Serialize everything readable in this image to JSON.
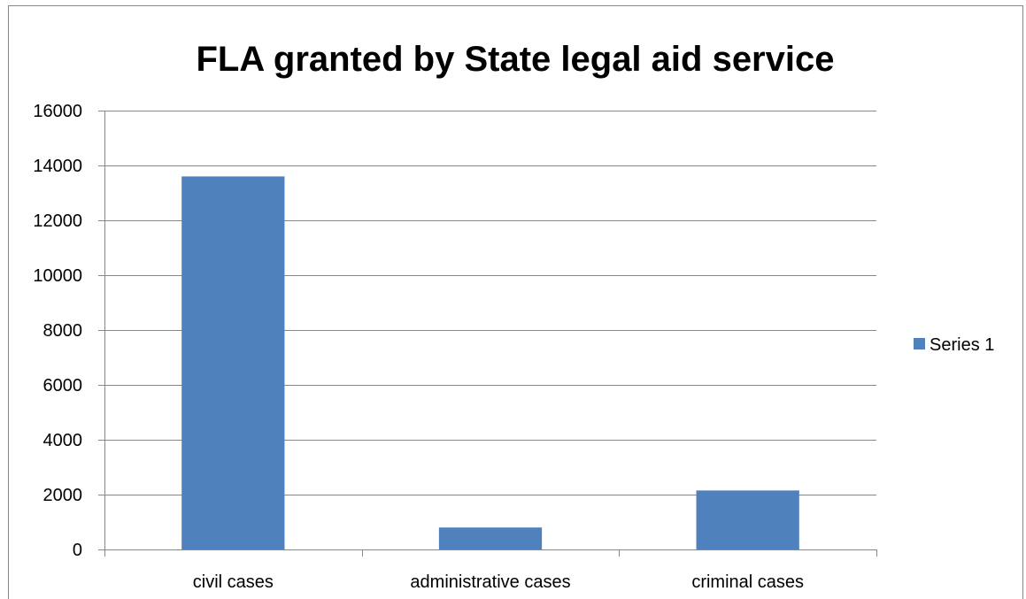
{
  "chart_data": {
    "type": "bar",
    "title": "FLA granted by State legal aid service",
    "xlabel": "",
    "ylabel": "",
    "categories": [
      "civil cases",
      "administrative cases",
      "criminal cases"
    ],
    "series": [
      {
        "name": "Series 1",
        "values": [
          13600,
          800,
          2150
        ]
      }
    ],
    "ylim": [
      0,
      16000
    ],
    "yticks": [
      "0",
      "2000",
      "4000",
      "6000",
      "8000",
      "10000",
      "12000",
      "14000",
      "16000"
    ],
    "grid": true,
    "legend": "right",
    "colors": {
      "bar": "#4f81bd",
      "grid": "#878787",
      "axis": "#878787",
      "border": "#878787"
    }
  }
}
